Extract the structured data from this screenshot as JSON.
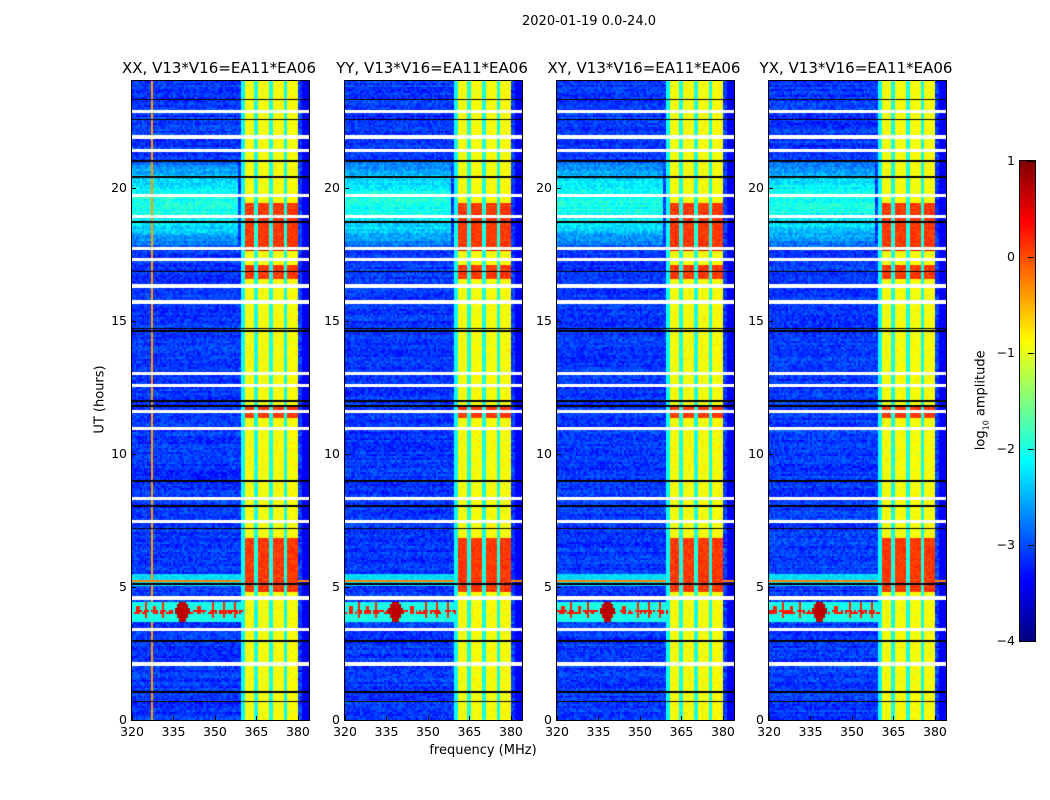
{
  "suptitle": "2020-01-19 0.0-24.0",
  "chart_data": {
    "type": "heatmap",
    "title": "2020-01-19 0.0-24.0",
    "xlabel": "frequency (MHz)",
    "ylabel": "UT (hours)",
    "xlim": [
      320,
      384
    ],
    "ylim": [
      0,
      24
    ],
    "xticks": [
      "320",
      "335",
      "350",
      "365",
      "380"
    ],
    "xtick_values": [
      320,
      335,
      350,
      365,
      380
    ],
    "yticks": [
      "0",
      "5",
      "10",
      "15",
      "20"
    ],
    "ytick_values": [
      0,
      5,
      10,
      15,
      20
    ],
    "panels": [
      {
        "title": "XX, V13*V16=EA11*EA06",
        "seed": 11
      },
      {
        "title": "YY, V13*V16=EA11*EA06",
        "seed": 23
      },
      {
        "title": "XY, V13*V16=EA11*EA06",
        "seed": 37
      },
      {
        "title": "YX, V13*V16=EA11*EA06",
        "seed": 51
      }
    ],
    "colorbar": {
      "label": "log10 amplitude",
      "label_main": "log",
      "label_sub": "10",
      "label_rest": " amplitude",
      "colormap": "jet",
      "range": [
        -4,
        1
      ],
      "ticks": [
        "1",
        "0",
        "−1",
        "−2",
        "−3",
        "−4"
      ],
      "tick_values": [
        1,
        0,
        -1,
        -2,
        -3,
        -4
      ]
    },
    "background_level": -3.1,
    "strong_band_mhz": [
      360.5,
      380
    ],
    "strong_band_level": -0.9,
    "band_gaps_mhz": [
      364.8,
      370,
      375.2
    ],
    "hot_periods_hours": [
      [
        4.8,
        6.8
      ],
      [
        11.3,
        11.8
      ],
      [
        16.6,
        17.1
      ],
      [
        17.6,
        19.4
      ]
    ],
    "rfi_period_hours": [
      3.7,
      4.4
    ],
    "rfi_spike_mhz": [
      322,
      325,
      328,
      331,
      338,
      344,
      349,
      353,
      357,
      366,
      371,
      374,
      378
    ],
    "flagged_white_hours": [
      2.1,
      3.4,
      4.58,
      7.47,
      8.33,
      10.96,
      11.6,
      12.57,
      13.0,
      15.7,
      16.3,
      17.3,
      17.7,
      18.9,
      19.7,
      21.4,
      21.9,
      22.85
    ],
    "flagged_black_hours": [
      0.7,
      1.05,
      2.96,
      5.1,
      7.2,
      8.03,
      8.97,
      11.8,
      11.97,
      14.6,
      14.7,
      16.85,
      18.7,
      20.4,
      21.0,
      22.55,
      23.3
    ]
  }
}
